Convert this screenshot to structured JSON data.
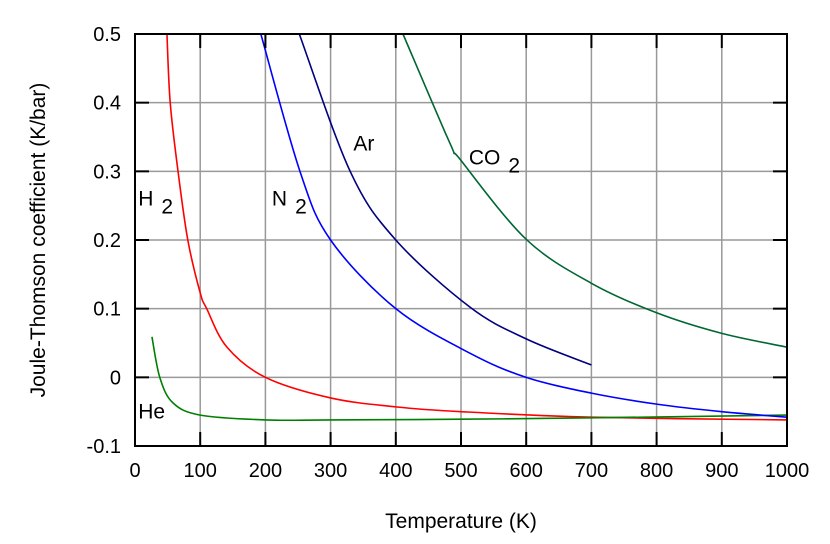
{
  "chart_data": {
    "type": "line",
    "title": "",
    "xlabel": "Temperature (K)",
    "ylabel": "Joule-Thomson coefficient (K/bar)",
    "xlim": [
      0,
      1000
    ],
    "ylim": [
      -0.1,
      0.5
    ],
    "xticks": [
      0,
      100,
      200,
      300,
      400,
      500,
      600,
      700,
      800,
      900,
      1000
    ],
    "yticks": [
      -0.1,
      0,
      0.1,
      0.2,
      0.3,
      0.4,
      0.5
    ],
    "ytick_labels": [
      "-0.1",
      "0",
      "0.1",
      "0.2",
      "0.3",
      "0.4",
      "0.5"
    ],
    "grid": true,
    "legend": "none",
    "series": [
      {
        "name": "H2",
        "label": "H",
        "sub": "2",
        "color": "#ff0000",
        "label_at": [
          5,
          0.25
        ],
        "x": [
          49,
          54,
          66,
          81,
          100,
          110,
          141,
          200,
          300,
          400,
          500,
          700,
          1000
        ],
        "y": [
          0.5,
          0.4,
          0.3,
          0.2,
          0.123,
          0.1,
          0.044,
          0.0,
          -0.03,
          -0.043,
          -0.05,
          -0.058,
          -0.062
        ]
      },
      {
        "name": "He",
        "label": "He",
        "sub": "",
        "color": "#008000",
        "label_at": [
          5,
          -0.06
        ],
        "x": [
          26,
          38,
          58,
          100,
          200,
          300,
          500,
          700,
          1000
        ],
        "y": [
          0.059,
          0.0,
          -0.037,
          -0.055,
          -0.062,
          -0.062,
          -0.061,
          -0.059,
          -0.055
        ]
      },
      {
        "name": "N2",
        "label": "N",
        "sub": "2",
        "color": "#0000ff",
        "label_at": [
          210,
          0.25
        ],
        "x": [
          193,
          253,
          300,
          400,
          514,
          600,
          700,
          800,
          900,
          1000
        ],
        "y": [
          0.5,
          0.3,
          0.2,
          0.1,
          0.035,
          0.0,
          -0.023,
          -0.039,
          -0.05,
          -0.058
        ]
      },
      {
        "name": "Ar",
        "label": "Ar",
        "sub": "",
        "color": "#000080",
        "label_at": [
          335,
          0.33
        ],
        "x": [
          252,
          330,
          400,
          514,
          600,
          700
        ],
        "y": [
          0.5,
          0.3,
          0.2,
          0.102,
          0.056,
          0.018
        ]
      },
      {
        "name": "CO2",
        "label": "CO",
        "sub": "2",
        "color": "#006633",
        "label_at": [
          512,
          0.31
        ],
        "x": [
          411,
          483,
          499,
          600,
          700,
          800,
          900,
          1000
        ],
        "y": [
          0.5,
          0.341,
          0.317,
          0.201,
          0.137,
          0.094,
          0.064,
          0.044
        ]
      }
    ]
  }
}
